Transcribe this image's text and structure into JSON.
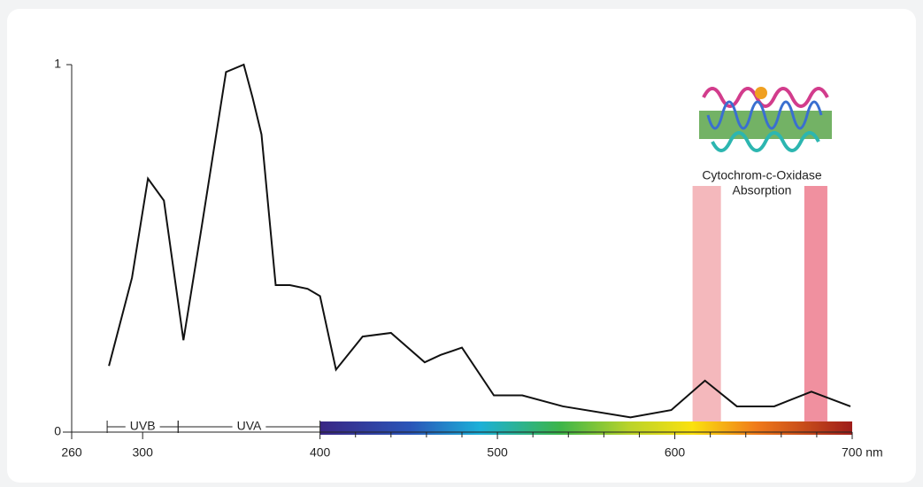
{
  "chart_data": {
    "type": "line",
    "x": [
      281,
      294,
      303,
      312,
      323,
      333,
      347,
      357,
      362,
      367,
      375,
      383,
      393,
      400,
      409,
      424,
      440,
      459,
      468,
      480,
      498,
      514,
      537,
      575,
      598,
      617,
      635,
      656,
      677,
      699
    ],
    "values": [
      0.18,
      0.42,
      0.69,
      0.63,
      0.25,
      0.55,
      0.98,
      1.0,
      0.91,
      0.81,
      0.4,
      0.4,
      0.39,
      0.37,
      0.17,
      0.26,
      0.27,
      0.19,
      0.21,
      0.23,
      0.1,
      0.1,
      0.07,
      0.04,
      0.06,
      0.14,
      0.07,
      0.07,
      0.11,
      0.07
    ],
    "color": "#111111",
    "xlim": [
      260,
      700
    ],
    "ylim": [
      0,
      1
    ],
    "xticks": [
      260,
      300,
      400,
      500,
      600,
      {
        "value": 700,
        "label": "700 nm"
      }
    ],
    "xminorticks": [
      420,
      440,
      460,
      480,
      520,
      540,
      560,
      580,
      620,
      640,
      660,
      680
    ],
    "yticks": [
      0,
      1
    ],
    "regions": [
      {
        "label": "UVB",
        "range": [
          280,
          320
        ]
      },
      {
        "label": "UVA",
        "range": [
          320,
          400
        ]
      }
    ],
    "spectrum": [
      400,
      700
    ],
    "bands": [
      {
        "range": [
          610,
          626
        ],
        "color": "#f4b8bc"
      },
      {
        "range": [
          673,
          686
        ],
        "color": "#f0909f"
      }
    ],
    "annotation": [
      "Cytochrom-c-Oxidase",
      "Absorption"
    ]
  }
}
